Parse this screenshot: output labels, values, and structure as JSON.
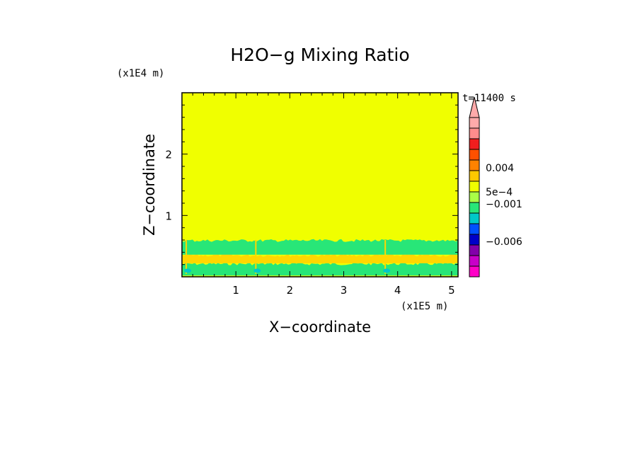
{
  "chart_data": {
    "type": "heatmap",
    "title": "H2O−g Mixing Ratio",
    "time_label": "t=11400 s",
    "xlabel": "X−coordinate",
    "ylabel": "Z−coordinate",
    "x_scale_label": "(x1E5 m)",
    "z_scale_label": "(x1E4 m)",
    "xlim": [
      0,
      5.12
    ],
    "zlim": [
      0,
      3.0
    ],
    "x_ticks": [
      1,
      2,
      3,
      4,
      5
    ],
    "x_tick_labels": [
      "1",
      "2",
      "3",
      "4",
      "5"
    ],
    "z_ticks": [
      1,
      2
    ],
    "z_tick_labels": [
      "1",
      "2"
    ],
    "background_level_color": "#f0ff00",
    "layers": [
      {
        "z_range": [
          0.02,
          0.22
        ],
        "color": "#28e678"
      },
      {
        "z_range": [
          0.22,
          0.36
        ],
        "color": "#ffd700"
      },
      {
        "z_range": [
          0.36,
          0.6
        ],
        "color": "#28e678"
      }
    ],
    "plumes_x": [
      0.08,
      1.37,
      3.77
    ],
    "colorbar": {
      "colors": [
        "#ff00c8",
        "#c800c8",
        "#8200aa",
        "#0000c8",
        "#0050ff",
        "#00c8c8",
        "#28e678",
        "#aaff46",
        "#f0ff00",
        "#ffc800",
        "#ff8200",
        "#ff5000",
        "#f01e1e",
        "#ff8c8c",
        "#ffaaaa"
      ],
      "labels": [
        "0.004",
        "5e−4",
        "−0.001",
        "−0.006"
      ],
      "extend": "max"
    }
  }
}
